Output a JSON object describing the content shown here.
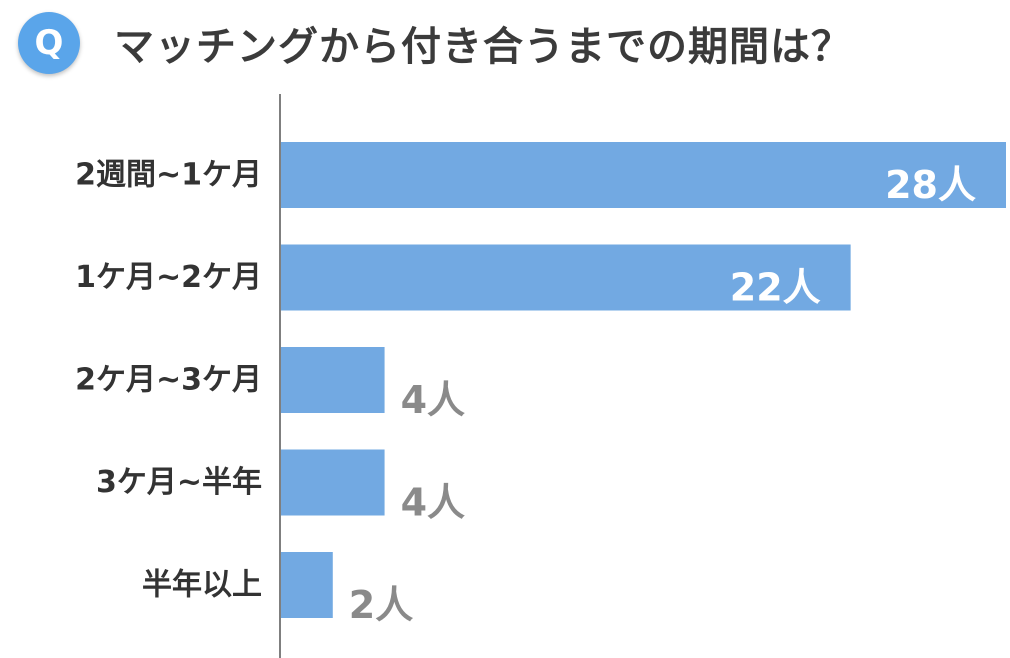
{
  "header": {
    "badge": "Q",
    "title": "マッチングから付き合うまでの期間は？"
  },
  "colors": {
    "bar": "#72a9e2",
    "badge": "#5aa5ea",
    "label_inside": "#ffffff",
    "label_outside": "#8a8a8a",
    "axis": "#555555"
  },
  "chart_data": {
    "type": "bar",
    "orientation": "horizontal",
    "categories": [
      "2週間~1ケ月",
      "1ケ月~2ケ月",
      "2ケ月~3ケ月",
      "3ケ月~半年",
      "半年以上"
    ],
    "values": [
      28,
      22,
      4,
      4,
      2
    ],
    "data_labels": [
      "28人",
      "22人",
      "4人",
      "4人",
      "2人"
    ],
    "title": "マッチングから付き合うまでの期間は？",
    "xlim": [
      0,
      28
    ],
    "grid": false
  }
}
